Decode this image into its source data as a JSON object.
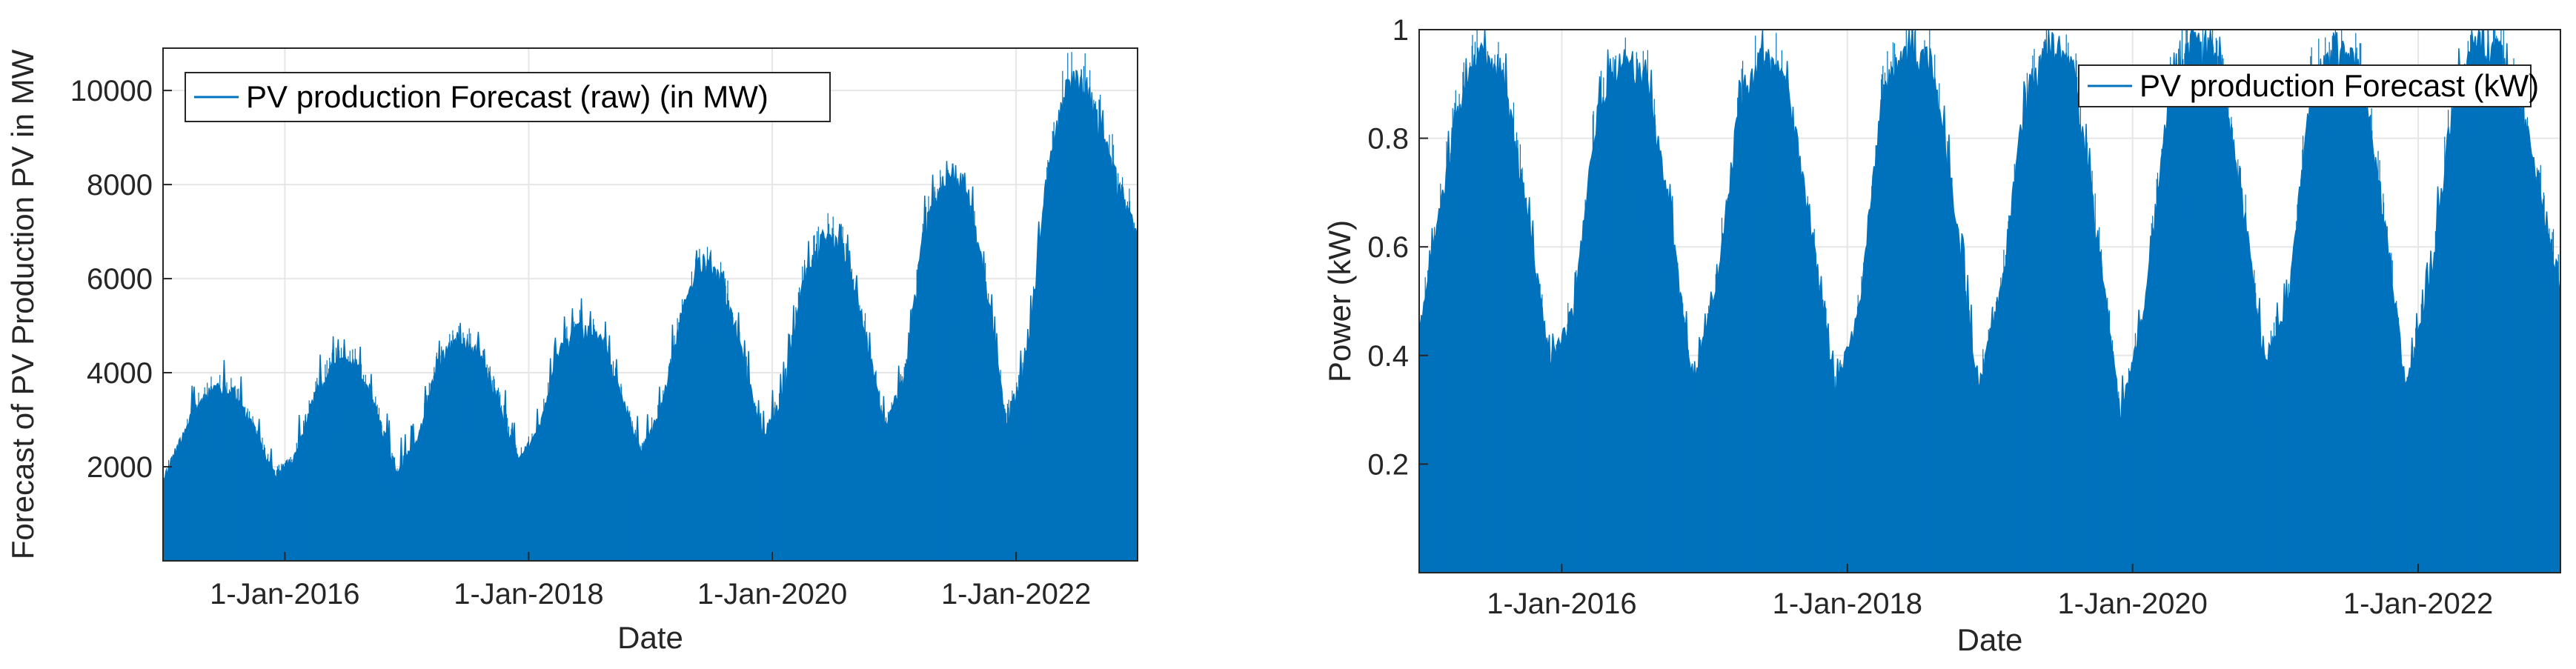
{
  "chart_data": [
    {
      "type": "area",
      "xlabel": "Date",
      "ylabel": "Forecast of PV Production PV in MW",
      "legend": {
        "entries": [
          "PV production Forecast (raw) (in MW)"
        ],
        "placement": "top-left"
      },
      "grid": true,
      "xlim": [
        "2015-01-01",
        "2022-12-31"
      ],
      "ylim": [
        0,
        10900
      ],
      "x_ticks": [
        {
          "date": "2016-01-01",
          "label": "1-Jan-2016"
        },
        {
          "date": "2018-01-01",
          "label": "1-Jan-2018"
        },
        {
          "date": "2020-01-01",
          "label": "1-Jan-2020"
        },
        {
          "date": "2022-01-01",
          "label": "1-Jan-2022"
        }
      ],
      "y_ticks": [
        2000,
        4000,
        6000,
        8000,
        10000
      ],
      "series": [
        {
          "name": "PV production Forecast (raw) (in MW)",
          "color": "#0072BD",
          "envelope_x": [
            "2015-01-01",
            "2015-04-01",
            "2015-06-01",
            "2015-08-01",
            "2015-10-01",
            "2015-12-01",
            "2016-02-01",
            "2016-04-01",
            "2016-06-01",
            "2016-08-01",
            "2016-10-01",
            "2016-12-01",
            "2017-02-01",
            "2017-04-01",
            "2017-06-01",
            "2017-08-01",
            "2017-10-01",
            "2017-12-01",
            "2018-02-01",
            "2018-04-01",
            "2018-06-01",
            "2018-08-01",
            "2018-10-01",
            "2018-12-01",
            "2019-02-01",
            "2019-04-01",
            "2019-06-01",
            "2019-08-01",
            "2019-10-01",
            "2019-12-01",
            "2020-02-01",
            "2020-04-01",
            "2020-06-01",
            "2020-08-01",
            "2020-10-01",
            "2020-12-01",
            "2021-02-01",
            "2021-04-01",
            "2021-06-01",
            "2021-08-01",
            "2021-10-01",
            "2021-12-01",
            "2022-02-01",
            "2022-04-01",
            "2022-06-01",
            "2022-08-01",
            "2022-10-01",
            "2022-12-31"
          ],
          "envelope_max": [
            1800,
            3300,
            3800,
            3700,
            2900,
            1900,
            2300,
            3700,
            4400,
            4300,
            3300,
            2000,
            2600,
            4300,
            4900,
            4600,
            3600,
            2200,
            2900,
            4600,
            5100,
            4900,
            3800,
            2400,
            3300,
            5300,
            6600,
            6200,
            4600,
            2700,
            3600,
            6000,
            7100,
            6900,
            5200,
            3000,
            4000,
            7300,
            8200,
            8300,
            6100,
            3100,
            4300,
            8200,
            10500,
            10300,
            9000,
            7000
          ]
        }
      ]
    },
    {
      "type": "area",
      "xlabel": "Date",
      "ylabel": "Power (kW)",
      "legend": {
        "entries": [
          "PV production Forecast (kW)"
        ],
        "placement": "top-right"
      },
      "grid": true,
      "xlim": [
        "2015-01-01",
        "2022-12-31"
      ],
      "ylim": [
        0,
        1.0
      ],
      "x_ticks": [
        {
          "date": "2016-01-01",
          "label": "1-Jan-2016"
        },
        {
          "date": "2018-01-01",
          "label": "1-Jan-2018"
        },
        {
          "date": "2020-01-01",
          "label": "1-Jan-2020"
        },
        {
          "date": "2022-01-01",
          "label": "1-Jan-2022"
        }
      ],
      "y_ticks": [
        {
          "value": 0.2,
          "label": "0.2"
        },
        {
          "value": 0.4,
          "label": "0.4"
        },
        {
          "value": 0.6,
          "label": "0.6"
        },
        {
          "value": 0.8,
          "label": "0.8"
        },
        {
          "value": 1.0,
          "label": "1"
        }
      ],
      "series": [
        {
          "name": "PV production Forecast (kW)",
          "color": "#0072BD",
          "envelope_x": [
            "2015-01-01",
            "2015-04-01",
            "2015-06-01",
            "2015-08-01",
            "2015-10-01",
            "2015-12-01",
            "2016-02-01",
            "2016-04-01",
            "2016-06-01",
            "2016-08-01",
            "2016-10-01",
            "2016-12-01",
            "2017-02-01",
            "2017-04-01",
            "2017-06-01",
            "2017-08-01",
            "2017-10-01",
            "2017-12-01",
            "2018-02-01",
            "2018-04-01",
            "2018-06-01",
            "2018-08-01",
            "2018-10-01",
            "2018-12-01",
            "2019-02-01",
            "2019-04-01",
            "2019-06-01",
            "2019-08-01",
            "2019-10-01",
            "2019-12-01",
            "2020-02-01",
            "2020-04-01",
            "2020-06-01",
            "2020-08-01",
            "2020-10-01",
            "2020-12-01",
            "2021-02-01",
            "2021-04-01",
            "2021-06-01",
            "2021-08-01",
            "2021-10-01",
            "2021-12-01",
            "2022-02-01",
            "2022-04-01",
            "2022-06-01",
            "2022-08-01",
            "2022-10-01",
            "2022-12-31"
          ],
          "envelope_max": [
            0.45,
            0.85,
            0.98,
            0.95,
            0.7,
            0.4,
            0.5,
            0.88,
            0.97,
            0.95,
            0.7,
            0.35,
            0.55,
            0.9,
            0.98,
            0.92,
            0.65,
            0.35,
            0.5,
            0.9,
            0.99,
            0.97,
            0.7,
            0.35,
            0.55,
            0.9,
            1.0,
            0.95,
            0.65,
            0.3,
            0.5,
            0.9,
            1.0,
            0.98,
            0.75,
            0.4,
            0.5,
            0.92,
            1.0,
            0.97,
            0.7,
            0.35,
            0.55,
            0.9,
            1.0,
            0.98,
            0.85,
            0.55
          ]
        }
      ]
    }
  ]
}
